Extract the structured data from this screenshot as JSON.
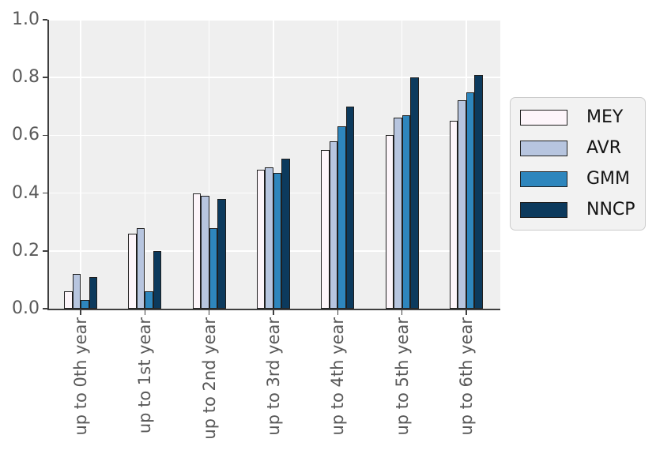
{
  "figure": {
    "background": "#ffffff"
  },
  "chart_data": {
    "type": "bar",
    "title": "",
    "xlabel": "",
    "ylabel": "",
    "categories": [
      "up to 0th year",
      "up to 1st year",
      "up to 2nd year",
      "up to 3rd year",
      "up to 4th year",
      "up to 5th year",
      "up to 6th year"
    ],
    "series": [
      {
        "name": "MEY",
        "color": "#fdf5fa",
        "values": [
          0.06,
          0.26,
          0.4,
          0.48,
          0.55,
          0.6,
          0.65
        ]
      },
      {
        "name": "AVR",
        "color": "#b7c5df",
        "values": [
          0.12,
          0.28,
          0.39,
          0.49,
          0.58,
          0.66,
          0.72
        ]
      },
      {
        "name": "GMM",
        "color": "#2e86bd",
        "values": [
          0.03,
          0.06,
          0.28,
          0.47,
          0.63,
          0.67,
          0.75
        ]
      },
      {
        "name": "NNCP",
        "color": "#0c3a5d",
        "values": [
          0.11,
          0.2,
          0.38,
          0.52,
          0.7,
          0.8,
          0.81
        ]
      }
    ],
    "ylim": [
      0,
      1.0
    ],
    "yticks": [
      0,
      0.2,
      0.4,
      0.6,
      0.8,
      1.0
    ],
    "ytick_labels": [
      "0.0",
      "0.2",
      "0.4",
      "0.6",
      "0.8",
      "1.0"
    ],
    "grid": true,
    "grid_axes": "both",
    "plot_background": "#efefef",
    "grid_color": "#ffffff",
    "bar_edge_color": "#1f1f1f",
    "spine_color": "#3f3f3f",
    "tick_label_color": "#595959",
    "legend": {
      "position": "center-right",
      "background": "#f2f2f2",
      "border_color": "#cccccc",
      "items": [
        "MEY",
        "AVR",
        "GMM",
        "NNCP"
      ]
    }
  }
}
